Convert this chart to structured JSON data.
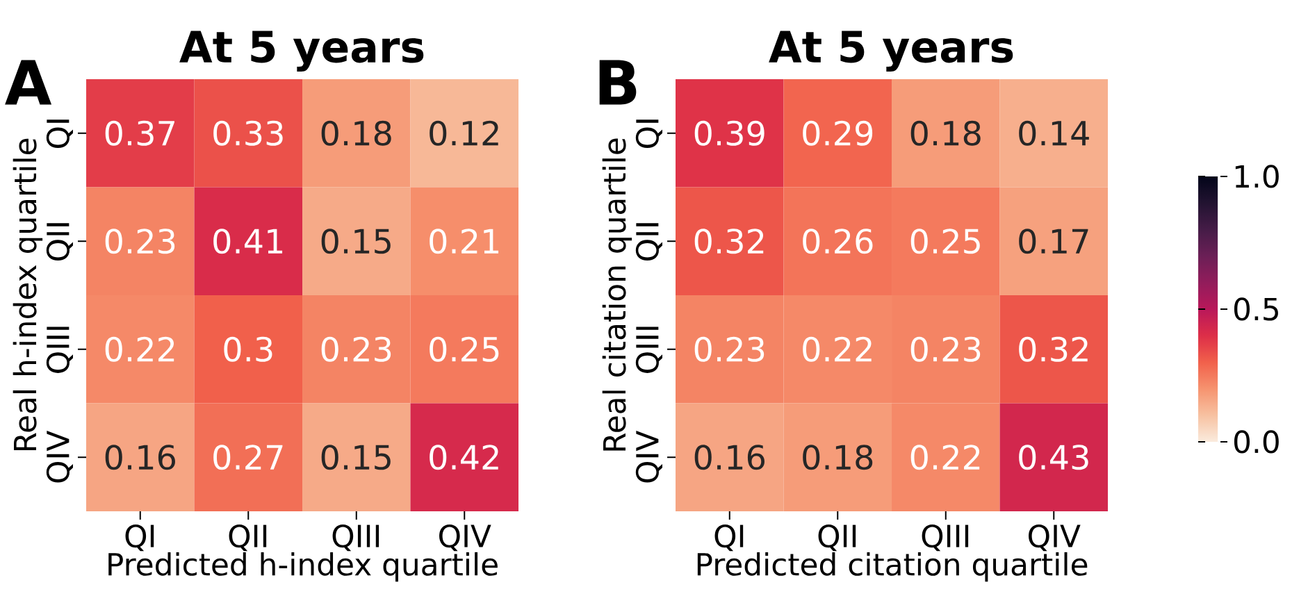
{
  "chart_data": [
    {
      "type": "heatmap",
      "title": "At 5 years",
      "xlabel": "Predicted h-index quartile",
      "ylabel": "Real h-index quartile",
      "annotations": [
        "A"
      ],
      "categories": [
        "QI",
        "QII",
        "QIII",
        "QIV"
      ],
      "y_categories": [
        "QI",
        "QII",
        "QIII",
        "QIV"
      ],
      "cells": [
        [
          0.37,
          0.33,
          0.18,
          0.12
        ],
        [
          0.23,
          0.41,
          0.15,
          0.21
        ],
        [
          0.22,
          0.3,
          0.23,
          0.25
        ],
        [
          0.16,
          0.27,
          0.15,
          0.42
        ]
      ],
      "data_labels": true
    },
    {
      "type": "heatmap",
      "title": "At 5 years",
      "xlabel": "Predicted citation quartile",
      "ylabel": "Real citation quartile",
      "annotations": [
        "B"
      ],
      "categories": [
        "QI",
        "QII",
        "QIII",
        "QIV"
      ],
      "y_categories": [
        "QI",
        "QII",
        "QIII",
        "QIV"
      ],
      "cells": [
        [
          0.39,
          0.29,
          0.18,
          0.14
        ],
        [
          0.32,
          0.26,
          0.25,
          0.17
        ],
        [
          0.23,
          0.22,
          0.23,
          0.32
        ],
        [
          0.16,
          0.18,
          0.22,
          0.43
        ]
      ],
      "data_labels": true,
      "clim": [
        0,
        1
      ],
      "cticks": [
        {
          "value": 0,
          "label": "0.0"
        },
        {
          "value": 0.5,
          "label": "0.5"
        },
        {
          "value": 1,
          "label": "1.0"
        }
      ]
    }
  ]
}
